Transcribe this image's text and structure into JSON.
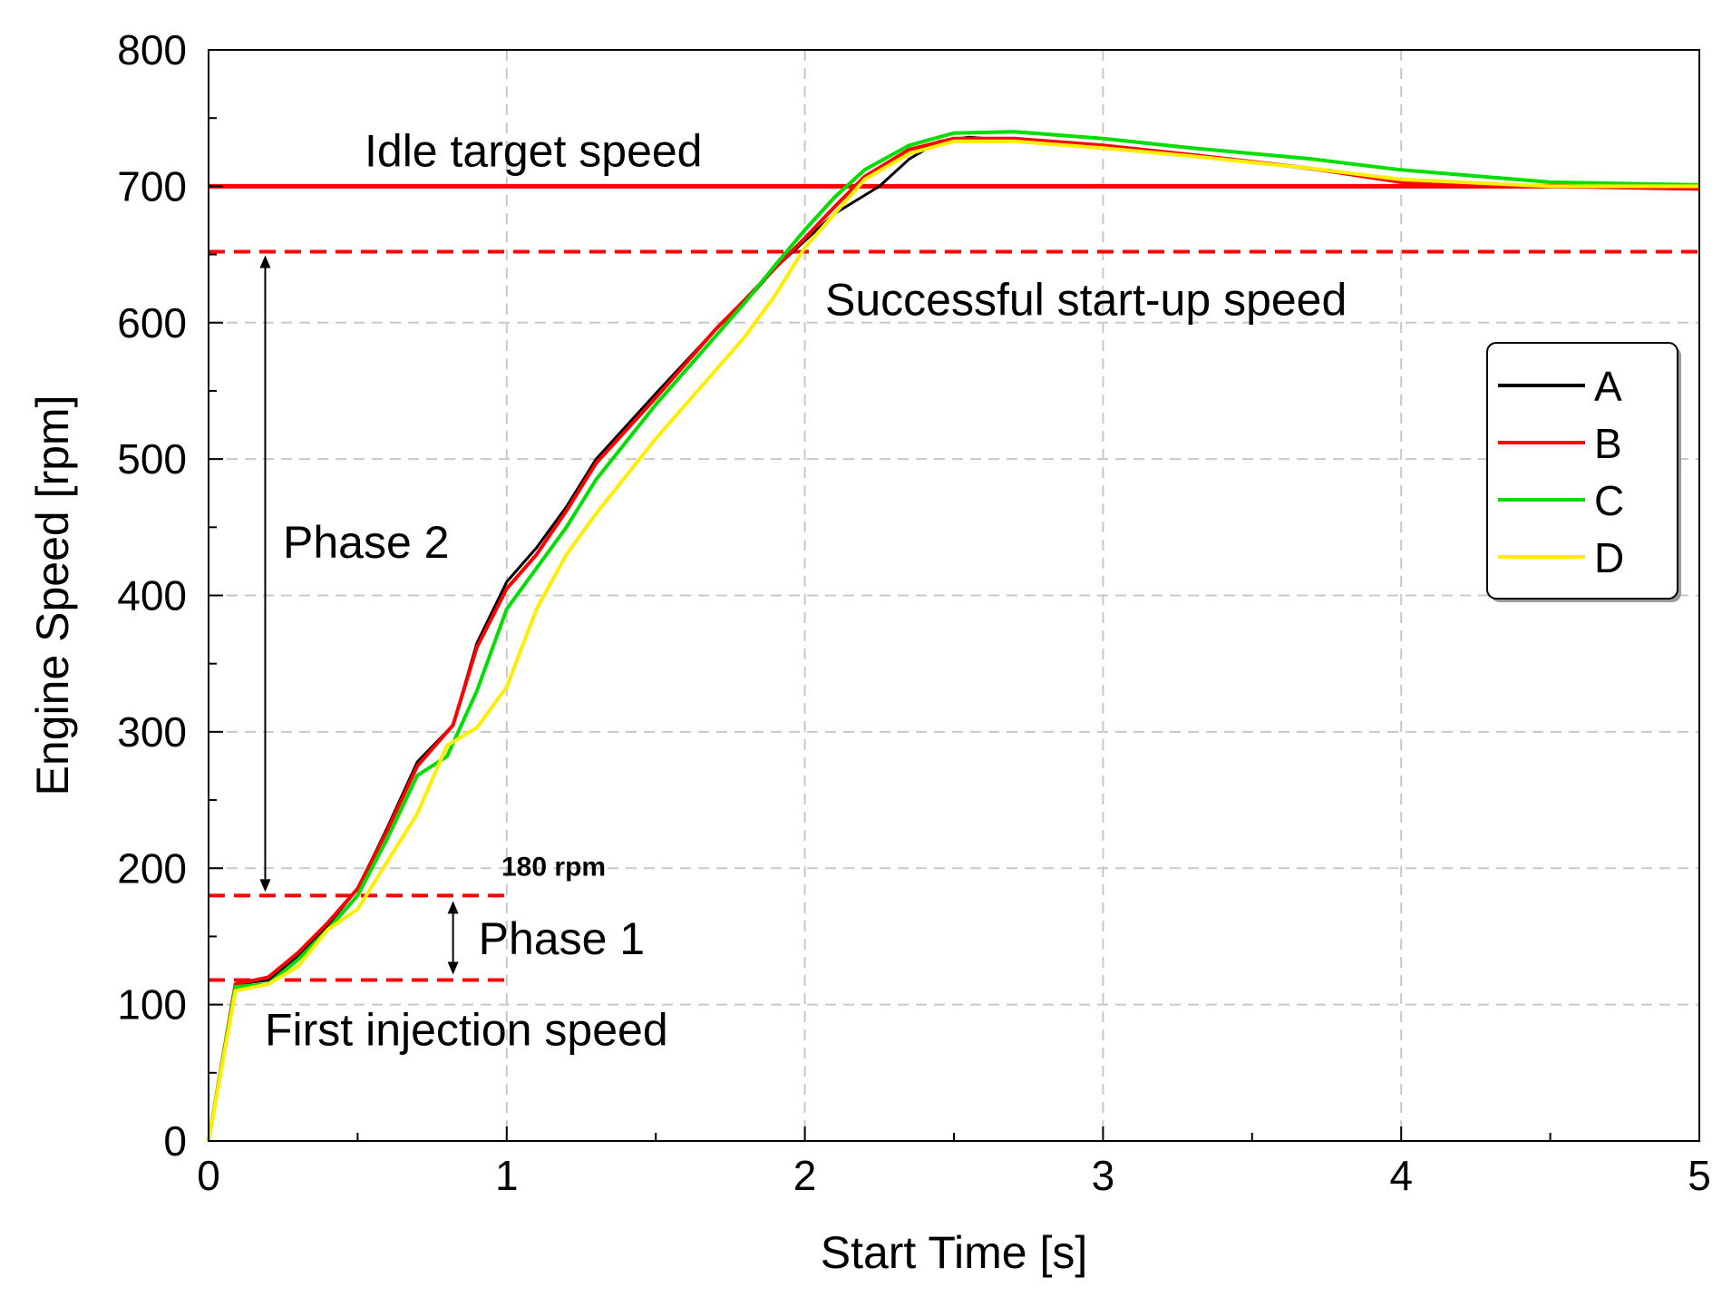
{
  "chart_data": {
    "type": "line",
    "title": "",
    "xlabel": "Start Time [s]",
    "ylabel": "Engine Speed [rpm]",
    "xlim": [
      0,
      5
    ],
    "ylim": [
      0,
      800
    ],
    "xticks": [
      0,
      1,
      2,
      3,
      4,
      5
    ],
    "yticks": [
      0,
      100,
      200,
      300,
      400,
      500,
      600,
      700,
      800
    ],
    "grid": true,
    "legend": {
      "placement": "right",
      "entries": [
        "A",
        "B",
        "C",
        "D"
      ]
    },
    "series": [
      {
        "name": "A",
        "color": "#000000",
        "points": [
          [
            0,
            0
          ],
          [
            0.09,
            115
          ],
          [
            0.2,
            118
          ],
          [
            0.3,
            135
          ],
          [
            0.4,
            158
          ],
          [
            0.5,
            185
          ],
          [
            0.6,
            230
          ],
          [
            0.7,
            278
          ],
          [
            0.82,
            305
          ],
          [
            0.9,
            365
          ],
          [
            1.0,
            410
          ],
          [
            1.1,
            435
          ],
          [
            1.2,
            465
          ],
          [
            1.3,
            500
          ],
          [
            1.5,
            548
          ],
          [
            1.7,
            595
          ],
          [
            1.8,
            615
          ],
          [
            1.9,
            640
          ],
          [
            2.0,
            660
          ],
          [
            2.1,
            680
          ],
          [
            2.25,
            700
          ],
          [
            2.35,
            720
          ],
          [
            2.45,
            733
          ],
          [
            2.55,
            736
          ],
          [
            2.8,
            732
          ],
          [
            3.2,
            725
          ],
          [
            3.6,
            715
          ],
          [
            4.0,
            705
          ],
          [
            4.5,
            700
          ],
          [
            5.0,
            700
          ]
        ]
      },
      {
        "name": "B",
        "color": "#ff0000",
        "points": [
          [
            0,
            0
          ],
          [
            0.09,
            115
          ],
          [
            0.2,
            120
          ],
          [
            0.3,
            138
          ],
          [
            0.4,
            160
          ],
          [
            0.5,
            185
          ],
          [
            0.6,
            228
          ],
          [
            0.7,
            275
          ],
          [
            0.82,
            305
          ],
          [
            0.9,
            362
          ],
          [
            1.0,
            405
          ],
          [
            1.1,
            430
          ],
          [
            1.2,
            462
          ],
          [
            1.3,
            497
          ],
          [
            1.5,
            545
          ],
          [
            1.7,
            595
          ],
          [
            1.8,
            617
          ],
          [
            1.9,
            640
          ],
          [
            2.0,
            662
          ],
          [
            2.1,
            685
          ],
          [
            2.2,
            707
          ],
          [
            2.35,
            727
          ],
          [
            2.5,
            735
          ],
          [
            2.7,
            735
          ],
          [
            3.0,
            730
          ],
          [
            3.3,
            723
          ],
          [
            3.7,
            713
          ],
          [
            4.0,
            703
          ],
          [
            4.5,
            700
          ],
          [
            5.0,
            698
          ]
        ]
      },
      {
        "name": "C",
        "color": "#00dd00",
        "points": [
          [
            0,
            0
          ],
          [
            0.09,
            113
          ],
          [
            0.2,
            115
          ],
          [
            0.3,
            133
          ],
          [
            0.4,
            155
          ],
          [
            0.5,
            180
          ],
          [
            0.6,
            222
          ],
          [
            0.7,
            268
          ],
          [
            0.8,
            282
          ],
          [
            0.9,
            330
          ],
          [
            1.0,
            390
          ],
          [
            1.1,
            420
          ],
          [
            1.2,
            450
          ],
          [
            1.3,
            485
          ],
          [
            1.5,
            540
          ],
          [
            1.7,
            590
          ],
          [
            1.8,
            615
          ],
          [
            1.9,
            642
          ],
          [
            2.0,
            668
          ],
          [
            2.1,
            692
          ],
          [
            2.2,
            712
          ],
          [
            2.35,
            730
          ],
          [
            2.5,
            739
          ],
          [
            2.7,
            740
          ],
          [
            3.0,
            735
          ],
          [
            3.3,
            728
          ],
          [
            3.7,
            720
          ],
          [
            4.0,
            712
          ],
          [
            4.5,
            703
          ],
          [
            5.0,
            701
          ]
        ]
      },
      {
        "name": "D",
        "color": "#ffee00",
        "points": [
          [
            0,
            0
          ],
          [
            0.09,
            110
          ],
          [
            0.2,
            115
          ],
          [
            0.3,
            128
          ],
          [
            0.4,
            155
          ],
          [
            0.5,
            170
          ],
          [
            0.6,
            205
          ],
          [
            0.7,
            240
          ],
          [
            0.8,
            290
          ],
          [
            0.9,
            303
          ],
          [
            1.0,
            333
          ],
          [
            1.1,
            390
          ],
          [
            1.2,
            430
          ],
          [
            1.3,
            460
          ],
          [
            1.5,
            515
          ],
          [
            1.7,
            565
          ],
          [
            1.8,
            590
          ],
          [
            1.9,
            620
          ],
          [
            2.0,
            655
          ],
          [
            2.1,
            680
          ],
          [
            2.2,
            705
          ],
          [
            2.35,
            724
          ],
          [
            2.5,
            733
          ],
          [
            2.7,
            733
          ],
          [
            3.0,
            728
          ],
          [
            3.3,
            722
          ],
          [
            3.7,
            713
          ],
          [
            4.0,
            705
          ],
          [
            4.5,
            700
          ],
          [
            5.0,
            700
          ]
        ]
      }
    ],
    "reference_lines": [
      {
        "value": 700,
        "style": "solid",
        "color": "#ff0000",
        "label": "Idle target speed"
      },
      {
        "value": 652,
        "style": "dashed",
        "color": "#ff0000",
        "label": "Successful start-up speed"
      },
      {
        "value": 180,
        "style": "dashed",
        "color": "#ff0000",
        "x_end": 1.0,
        "label": "180 rpm"
      },
      {
        "value": 118,
        "style": "dashed",
        "color": "#ff0000",
        "x_end": 1.0,
        "label": "First injection speed"
      }
    ],
    "phases": [
      {
        "label": "Phase 1",
        "from": 118,
        "to": 180,
        "x": 0.82
      },
      {
        "label": "Phase 2",
        "from": 180,
        "to": 652,
        "x": 0.19
      }
    ]
  }
}
